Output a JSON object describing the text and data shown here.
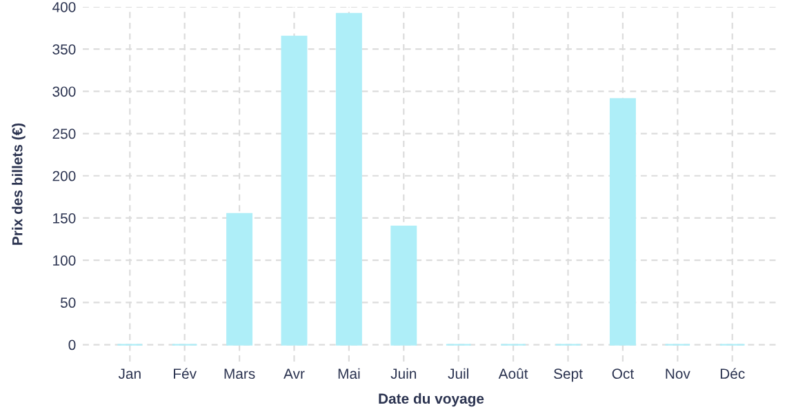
{
  "chart_data": {
    "type": "bar",
    "xlabel": "Date du voyage",
    "ylabel": "Prix des billets (€)",
    "categories": [
      "Jan",
      "Fév",
      "Mars",
      "Avr",
      "Mai",
      "Juin",
      "Juil",
      "Août",
      "Sept",
      "Oct",
      "Nov",
      "Déc"
    ],
    "values": [
      0,
      0,
      155,
      365,
      392,
      140,
      0,
      0,
      0,
      291,
      0,
      0
    ],
    "color": "#aeeef8",
    "ylim": [
      -20,
      400
    ],
    "yticks": [
      0,
      50,
      100,
      150,
      200,
      250,
      300,
      350,
      400
    ],
    "grid": true
  }
}
